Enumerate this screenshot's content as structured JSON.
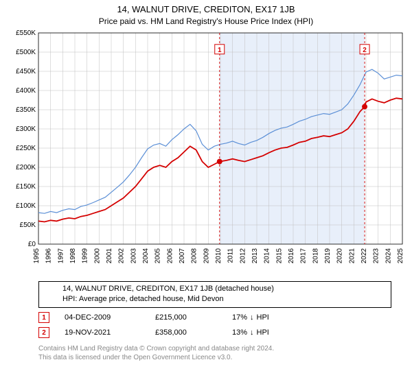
{
  "title_line1": "14, WALNUT DRIVE, CREDITON, EX17 1JB",
  "title_line2": "Price paid vs. HM Land Registry's House Price Index (HPI)",
  "chart": {
    "type": "line",
    "background_color": "#ffffff",
    "grid_color": "#bfbfbf",
    "shaded_region_color": "#e8effa",
    "shaded_region_x_start": 2009.93,
    "shaded_region_x_end": 2021.89,
    "x_axis": {
      "min": 1995,
      "max": 2025,
      "ticks": [
        1995,
        1996,
        1997,
        1998,
        1999,
        2000,
        2001,
        2002,
        2003,
        2004,
        2005,
        2006,
        2007,
        2008,
        2009,
        2010,
        2011,
        2012,
        2013,
        2014,
        2015,
        2016,
        2017,
        2018,
        2019,
        2020,
        2021,
        2022,
        2023,
        2024,
        2025
      ],
      "label_fontsize": 10,
      "label_rotation": -90
    },
    "y_axis": {
      "min": 0,
      "max": 550000,
      "ticks": [
        0,
        50000,
        100000,
        150000,
        200000,
        250000,
        300000,
        350000,
        400000,
        450000,
        500000,
        550000
      ],
      "tick_labels": [
        "£0",
        "£50K",
        "£100K",
        "£150K",
        "£200K",
        "£250K",
        "£300K",
        "£350K",
        "£400K",
        "£450K",
        "£500K",
        "£550K"
      ],
      "label_fontsize": 10
    },
    "series": [
      {
        "name": "property",
        "label": "14, WALNUT DRIVE, CREDITON, EX17 1JB (detached house)",
        "color": "#d40000",
        "line_width": 1.8,
        "data": [
          [
            1995,
            60000
          ],
          [
            1995.5,
            58000
          ],
          [
            1996,
            62000
          ],
          [
            1996.5,
            60000
          ],
          [
            1997,
            65000
          ],
          [
            1997.5,
            68000
          ],
          [
            1998,
            66000
          ],
          [
            1998.5,
            72000
          ],
          [
            1999,
            75000
          ],
          [
            1999.5,
            80000
          ],
          [
            2000,
            85000
          ],
          [
            2000.5,
            90000
          ],
          [
            2001,
            100000
          ],
          [
            2001.5,
            110000
          ],
          [
            2002,
            120000
          ],
          [
            2002.5,
            135000
          ],
          [
            2003,
            150000
          ],
          [
            2003.5,
            170000
          ],
          [
            2004,
            190000
          ],
          [
            2004.5,
            200000
          ],
          [
            2005,
            205000
          ],
          [
            2005.5,
            200000
          ],
          [
            2006,
            215000
          ],
          [
            2006.5,
            225000
          ],
          [
            2007,
            240000
          ],
          [
            2007.5,
            255000
          ],
          [
            2008,
            245000
          ],
          [
            2008.5,
            215000
          ],
          [
            2009,
            200000
          ],
          [
            2009.5,
            208000
          ],
          [
            2009.93,
            215000
          ],
          [
            2010.5,
            218000
          ],
          [
            2011,
            222000
          ],
          [
            2011.5,
            218000
          ],
          [
            2012,
            215000
          ],
          [
            2012.5,
            220000
          ],
          [
            2013,
            225000
          ],
          [
            2013.5,
            230000
          ],
          [
            2014,
            238000
          ],
          [
            2014.5,
            245000
          ],
          [
            2015,
            250000
          ],
          [
            2015.5,
            252000
          ],
          [
            2016,
            258000
          ],
          [
            2016.5,
            265000
          ],
          [
            2017,
            268000
          ],
          [
            2017.5,
            275000
          ],
          [
            2018,
            278000
          ],
          [
            2018.5,
            282000
          ],
          [
            2019,
            280000
          ],
          [
            2019.5,
            285000
          ],
          [
            2020,
            290000
          ],
          [
            2020.5,
            300000
          ],
          [
            2021,
            320000
          ],
          [
            2021.5,
            345000
          ],
          [
            2021.89,
            358000
          ],
          [
            2022,
            370000
          ],
          [
            2022.5,
            378000
          ],
          [
            2023,
            372000
          ],
          [
            2023.5,
            368000
          ],
          [
            2024,
            375000
          ],
          [
            2024.5,
            380000
          ],
          [
            2025,
            378000
          ]
        ]
      },
      {
        "name": "hpi",
        "label": "HPI: Average price, detached house, Mid Devon",
        "color": "#5b8fd6",
        "line_width": 1.2,
        "data": [
          [
            1995,
            82000
          ],
          [
            1995.5,
            80000
          ],
          [
            1996,
            85000
          ],
          [
            1996.5,
            82000
          ],
          [
            1997,
            88000
          ],
          [
            1997.5,
            92000
          ],
          [
            1998,
            90000
          ],
          [
            1998.5,
            98000
          ],
          [
            1999,
            102000
          ],
          [
            1999.5,
            108000
          ],
          [
            2000,
            115000
          ],
          [
            2000.5,
            122000
          ],
          [
            2001,
            135000
          ],
          [
            2001.5,
            148000
          ],
          [
            2002,
            162000
          ],
          [
            2002.5,
            180000
          ],
          [
            2003,
            200000
          ],
          [
            2003.5,
            225000
          ],
          [
            2004,
            248000
          ],
          [
            2004.5,
            258000
          ],
          [
            2005,
            262000
          ],
          [
            2005.5,
            255000
          ],
          [
            2006,
            272000
          ],
          [
            2006.5,
            285000
          ],
          [
            2007,
            300000
          ],
          [
            2007.5,
            312000
          ],
          [
            2008,
            295000
          ],
          [
            2008.5,
            260000
          ],
          [
            2009,
            245000
          ],
          [
            2009.5,
            255000
          ],
          [
            2010,
            260000
          ],
          [
            2010.5,
            263000
          ],
          [
            2011,
            268000
          ],
          [
            2011.5,
            262000
          ],
          [
            2012,
            258000
          ],
          [
            2012.5,
            265000
          ],
          [
            2013,
            270000
          ],
          [
            2013.5,
            278000
          ],
          [
            2014,
            288000
          ],
          [
            2014.5,
            296000
          ],
          [
            2015,
            302000
          ],
          [
            2015.5,
            305000
          ],
          [
            2016,
            312000
          ],
          [
            2016.5,
            320000
          ],
          [
            2017,
            325000
          ],
          [
            2017.5,
            332000
          ],
          [
            2018,
            336000
          ],
          [
            2018.5,
            340000
          ],
          [
            2019,
            338000
          ],
          [
            2019.5,
            344000
          ],
          [
            2020,
            350000
          ],
          [
            2020.5,
            365000
          ],
          [
            2021,
            388000
          ],
          [
            2021.5,
            415000
          ],
          [
            2022,
            448000
          ],
          [
            2022.5,
            455000
          ],
          [
            2023,
            445000
          ],
          [
            2023.5,
            430000
          ],
          [
            2024,
            435000
          ],
          [
            2024.5,
            440000
          ],
          [
            2025,
            438000
          ]
        ]
      }
    ],
    "sale_markers": [
      {
        "n": "1",
        "x": 2009.93,
        "y": 215000,
        "dot_color": "#d40000",
        "box_border": "#d40000",
        "label_y": 520000
      },
      {
        "n": "2",
        "x": 2021.89,
        "y": 358000,
        "dot_color": "#d40000",
        "box_border": "#d40000",
        "label_y": 520000
      }
    ],
    "vline_color": "#d40000",
    "vline_dash": "3,3",
    "marker_dot_radius": 4,
    "marker_box_size": 14
  },
  "legend": {
    "items": [
      {
        "color": "#d40000",
        "width": 2,
        "text": "14, WALNUT DRIVE, CREDITON, EX17 1JB (detached house)"
      },
      {
        "color": "#5b8fd6",
        "width": 1.2,
        "text": "HPI: Average price, detached house, Mid Devon"
      }
    ]
  },
  "sales_table": {
    "rows": [
      {
        "n": "1",
        "border_color": "#d40000",
        "date": "04-DEC-2009",
        "price": "£215,000",
        "diff_pct": "17%",
        "diff_arrow": "↓",
        "diff_suffix": "HPI"
      },
      {
        "n": "2",
        "border_color": "#d40000",
        "date": "19-NOV-2021",
        "price": "£358,000",
        "diff_pct": "13%",
        "diff_arrow": "↓",
        "diff_suffix": "HPI"
      }
    ]
  },
  "footer": {
    "line1": "Contains HM Land Registry data © Crown copyright and database right 2024.",
    "line2": "This data is licensed under the Open Government Licence v3.0."
  },
  "colors": {
    "text": "#000000",
    "footer_text": "#888888"
  }
}
